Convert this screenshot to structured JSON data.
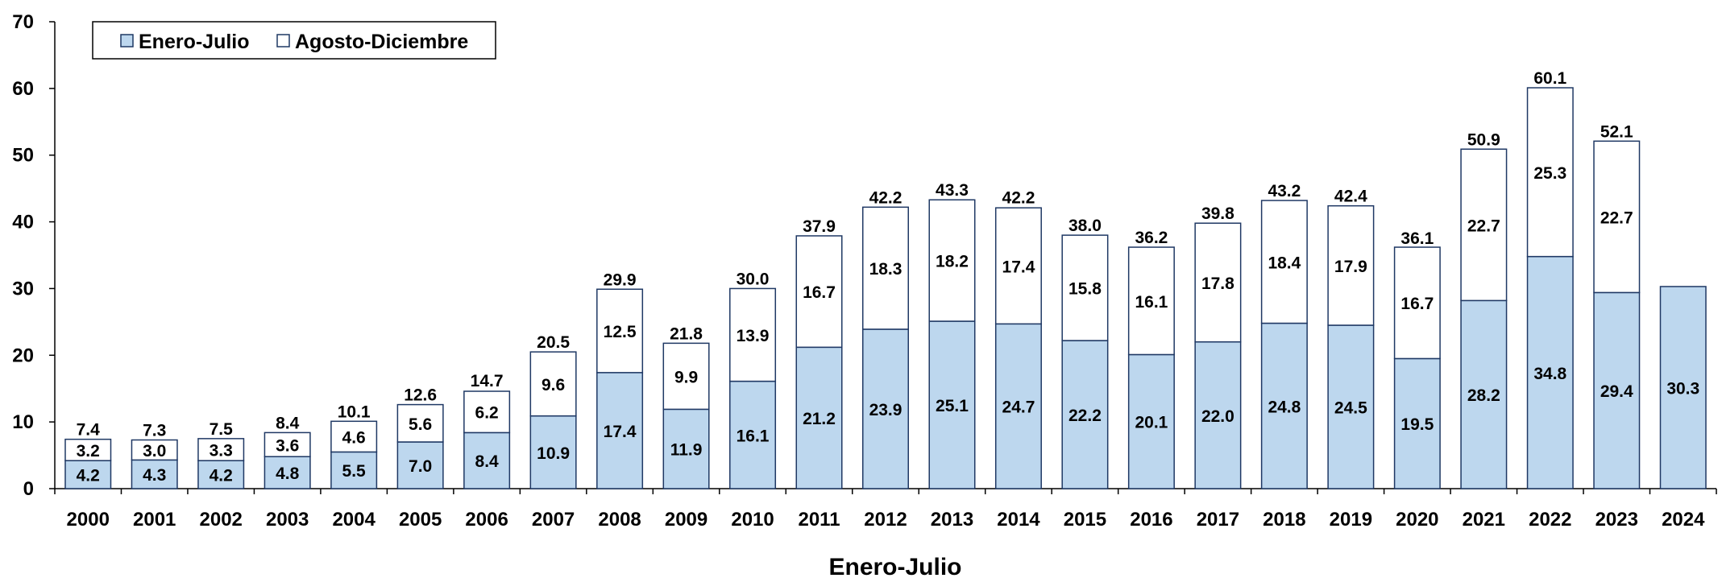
{
  "chart_data": {
    "type": "bar",
    "stacked": true,
    "categories": [
      "2000",
      "2001",
      "2002",
      "2003",
      "2004",
      "2005",
      "2006",
      "2007",
      "2008",
      "2009",
      "2010",
      "2011",
      "2012",
      "2013",
      "2014",
      "2015",
      "2016",
      "2017",
      "2018",
      "2019",
      "2020",
      "2021",
      "2022",
      "2023",
      "2024"
    ],
    "series": [
      {
        "name": "Enero-Julio",
        "color": "#bdd7ee",
        "values": [
          4.2,
          4.3,
          4.2,
          4.8,
          5.5,
          7.0,
          8.4,
          10.9,
          17.4,
          11.9,
          16.1,
          21.2,
          23.9,
          25.1,
          24.7,
          22.2,
          20.1,
          22.0,
          24.8,
          24.5,
          19.5,
          28.2,
          34.8,
          29.4,
          30.3
        ]
      },
      {
        "name": "Agosto-Diciembre",
        "color": "#ffffff",
        "values": [
          3.2,
          3.0,
          3.3,
          3.6,
          4.6,
          5.6,
          6.2,
          9.6,
          12.5,
          9.9,
          13.9,
          16.7,
          18.3,
          18.2,
          17.4,
          15.8,
          16.1,
          17.8,
          18.4,
          17.9,
          16.7,
          22.7,
          25.3,
          22.7,
          null
        ]
      }
    ],
    "totals": [
      7.4,
      7.3,
      7.5,
      8.4,
      10.1,
      12.6,
      14.7,
      20.5,
      29.9,
      21.8,
      30.0,
      37.9,
      42.2,
      43.3,
      42.2,
      38.0,
      36.2,
      39.8,
      43.2,
      42.4,
      36.1,
      50.9,
      60.1,
      52.1,
      null
    ],
    "title": "",
    "xlabel": "Enero-Julio",
    "ylabel": "",
    "ylim": [
      0,
      70
    ],
    "yticks": [
      0,
      10,
      20,
      30,
      40,
      50,
      60,
      70
    ],
    "grid": false,
    "legend_position": "top-left",
    "border_color": "#1f3864"
  }
}
